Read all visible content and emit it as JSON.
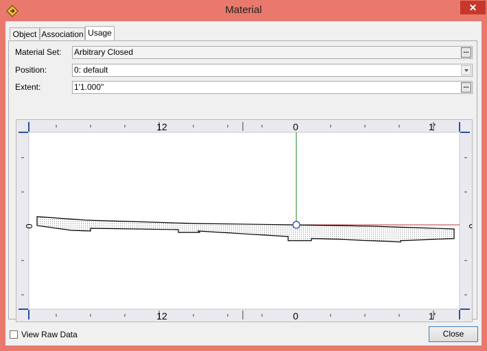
{
  "window": {
    "title": "Material",
    "close_glyph": "✕"
  },
  "tabs": [
    {
      "label": "Object",
      "active": false
    },
    {
      "label": "Association",
      "active": false
    },
    {
      "label": "Usage",
      "active": true
    }
  ],
  "form": {
    "material_set": {
      "label": "Material Set:",
      "value": "Arbitrary Closed",
      "button": "..."
    },
    "position": {
      "label": "Position:",
      "value": "0: default"
    },
    "extent": {
      "label": "Extent:",
      "value": "1'1.000\"",
      "button": "..."
    }
  },
  "viewer": {
    "ruler_top_labels": [
      "12",
      "0",
      "1'"
    ],
    "ruler_bottom_labels": [
      "12",
      "0",
      "1'"
    ],
    "ruler_side_labels": [
      "0",
      "0"
    ],
    "axis_colors": {
      "vertical": "#1a7a1a",
      "horizontal": "#c0303a",
      "origin": "#2a3aa0"
    }
  },
  "footer": {
    "view_raw_label": "View Raw Data",
    "view_raw_checked": false,
    "close_label": "Close"
  }
}
